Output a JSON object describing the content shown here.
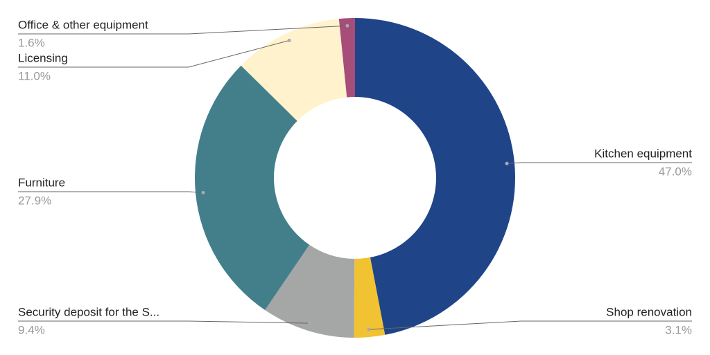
{
  "chart_data": {
    "type": "donut",
    "categories": [
      "Kitchen equipment",
      "Shop renovation",
      "Security deposit for the S...",
      "Furniture",
      "Licensing",
      "Office & other equipment"
    ],
    "values": [
      47.0,
      3.1,
      9.4,
      27.9,
      11.0,
      1.6
    ],
    "value_labels": [
      "47.0%",
      "3.1%",
      "9.4%",
      "27.9%",
      "11.0%",
      "1.6%"
    ],
    "colors": [
      "#1f4488",
      "#f1c232",
      "#a5a6a6",
      "#437f8b",
      "#fff2cc",
      "#a64d79"
    ]
  }
}
